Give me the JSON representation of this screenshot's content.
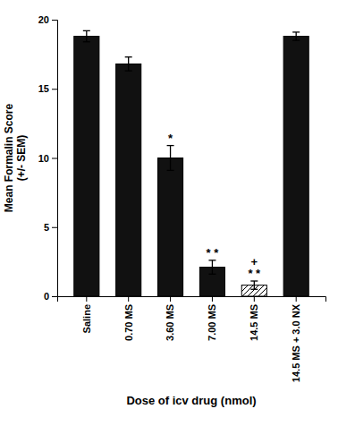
{
  "chart_data": {
    "type": "bar",
    "categories": [
      "Saline",
      "0.70 MS",
      "3.60 MS",
      "7.00 MS",
      "14.5 MS",
      "14.5 MS + 3.0 NX"
    ],
    "values": [
      18.8,
      16.8,
      10.0,
      2.1,
      0.8,
      18.8
    ],
    "errors": [
      0.4,
      0.5,
      0.9,
      0.5,
      0.3,
      0.3
    ],
    "colors": [
      "#111111",
      "#111111",
      "#111111",
      "#111111",
      "#ffffff",
      "#111111"
    ],
    "ylabel": "Mean Formalin Score\n(+/- SEM)",
    "xlabel": "Dose of icv drug (nmol)",
    "ylim": [
      0,
      20
    ],
    "yticks": [
      0,
      5,
      10,
      15,
      20
    ],
    "grid": false,
    "annotations": [
      {
        "text": "*",
        "category": "3.60 MS"
      },
      {
        "text": "* *",
        "category": "7.00 MS"
      },
      {
        "text": "* *",
        "category": "14.5 MS"
      },
      {
        "text": "+",
        "category": "14.5 MS"
      }
    ]
  }
}
